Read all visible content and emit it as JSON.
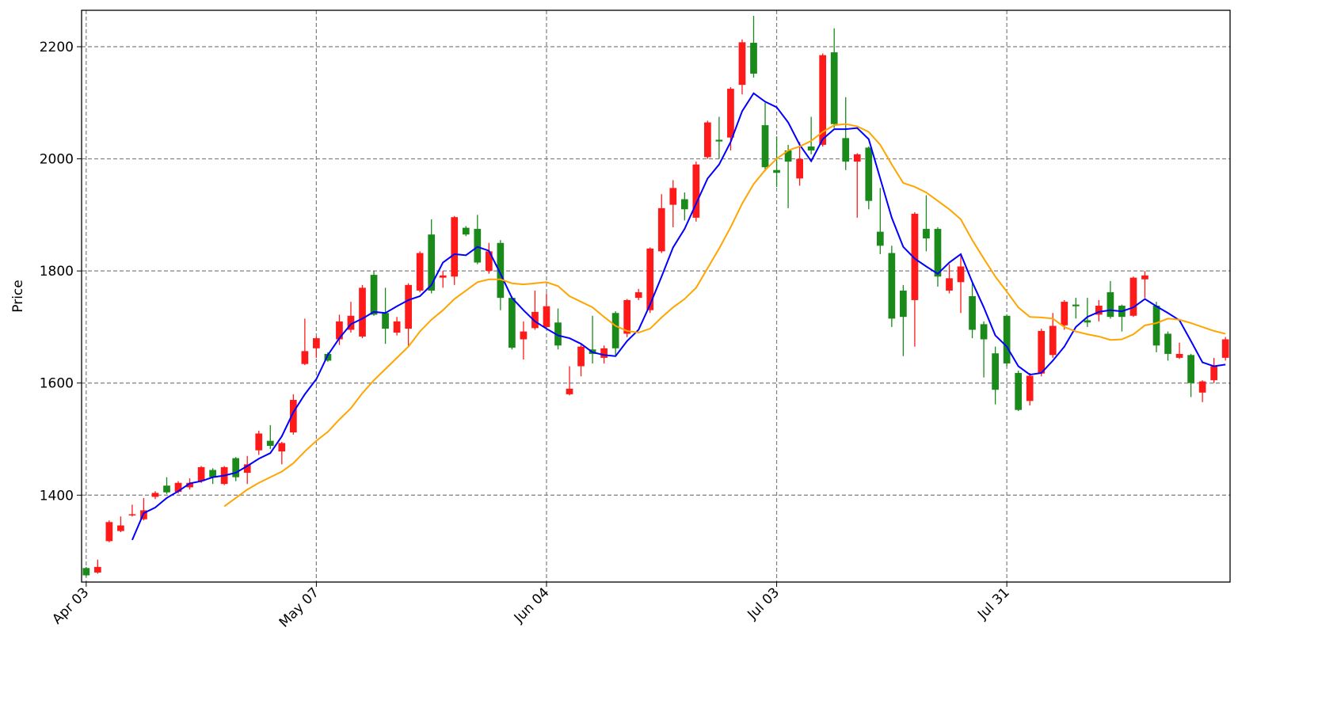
{
  "chart_data": {
    "type": "candlestick",
    "y_label": "Price",
    "categories": [
      "Apr 03",
      null,
      null,
      null,
      null,
      null,
      null,
      null,
      null,
      null,
      null,
      null,
      null,
      null,
      null,
      null,
      null,
      null,
      null,
      null,
      "May 07",
      null,
      null,
      null,
      null,
      null,
      null,
      null,
      null,
      null,
      null,
      null,
      null,
      null,
      null,
      null,
      null,
      null,
      null,
      null,
      "Jun 04",
      null,
      null,
      null,
      null,
      null,
      null,
      null,
      null,
      null,
      null,
      null,
      null,
      null,
      null,
      null,
      null,
      null,
      null,
      null,
      "Jul 03",
      null,
      null,
      null,
      null,
      null,
      null,
      null,
      null,
      null,
      null,
      null,
      null,
      null,
      null,
      null,
      null,
      null,
      null,
      null,
      "Jul 31",
      null,
      null,
      null,
      null,
      null,
      null,
      null,
      null,
      null,
      null,
      null,
      null,
      null,
      null,
      null,
      null,
      null,
      null,
      null
    ],
    "open": [
      1270,
      1262,
      1318,
      1336,
      1364,
      1357,
      1397,
      1417,
      1406,
      1414,
      1425,
      1445,
      1420,
      1466,
      1440,
      1480,
      1497,
      1478,
      1512,
      1634,
      1662,
      1652,
      1678,
      1695,
      1683,
      1793,
      1725,
      1690,
      1697,
      1765,
      1865,
      1788,
      1790,
      1877,
      1875,
      1800,
      1850,
      1752,
      1678,
      1698,
      1700,
      1708,
      1580,
      1630,
      1660,
      1645,
      1725,
      1688,
      1752,
      1730,
      1835,
      1918,
      1928,
      1895,
      2003,
      2034,
      2038,
      2132,
      2207,
      2060,
      1980,
      2015,
      1965,
      2022,
      2025,
      2190,
      2037,
      1995,
      2020,
      1870,
      1832,
      1765,
      1748,
      1875,
      1875,
      1765,
      1780,
      1755,
      1705,
      1653,
      1720,
      1618,
      1568,
      1617,
      1650,
      1703,
      1740,
      1712,
      1722,
      1762,
      1738,
      1720,
      1785,
      1738,
      1688,
      1645,
      1650,
      1583,
      1605,
      1645
    ],
    "high": [
      1272,
      1285,
      1355,
      1362,
      1383,
      1395,
      1407,
      1432,
      1425,
      1430,
      1452,
      1448,
      1452,
      1468,
      1470,
      1515,
      1525,
      1495,
      1580,
      1715,
      1683,
      1655,
      1722,
      1745,
      1775,
      1800,
      1770,
      1718,
      1778,
      1835,
      1892,
      1800,
      1898,
      1880,
      1900,
      1850,
      1855,
      1755,
      1710,
      1765,
      1760,
      1733,
      1630,
      1668,
      1720,
      1667,
      1728,
      1750,
      1768,
      1842,
      1937,
      1962,
      1940,
      1995,
      2068,
      2075,
      2128,
      2213,
      2255,
      2100,
      2040,
      2025,
      2030,
      2075,
      2188,
      2233,
      2110,
      2010,
      2022,
      1948,
      1845,
      1775,
      1905,
      1935,
      1878,
      1812,
      1830,
      1778,
      1710,
      1665,
      1722,
      1622,
      1618,
      1697,
      1725,
      1748,
      1752,
      1752,
      1748,
      1782,
      1740,
      1790,
      1800,
      1745,
      1692,
      1672,
      1652,
      1605,
      1645,
      1682
    ],
    "low": [
      1255,
      1260,
      1316,
      1334,
      1362,
      1355,
      1393,
      1402,
      1403,
      1410,
      1422,
      1420,
      1418,
      1425,
      1420,
      1472,
      1482,
      1455,
      1508,
      1632,
      1645,
      1638,
      1668,
      1690,
      1680,
      1720,
      1670,
      1685,
      1665,
      1762,
      1760,
      1770,
      1775,
      1862,
      1812,
      1795,
      1730,
      1660,
      1642,
      1695,
      1698,
      1660,
      1578,
      1612,
      1635,
      1635,
      1650,
      1682,
      1748,
      1725,
      1832,
      1878,
      1890,
      1888,
      2000,
      2000,
      2015,
      2115,
      2145,
      1978,
      1950,
      1912,
      1952,
      2008,
      2022,
      2055,
      1980,
      1895,
      1910,
      1830,
      1700,
      1648,
      1665,
      1835,
      1772,
      1760,
      1725,
      1680,
      1610,
      1562,
      1630,
      1550,
      1560,
      1612,
      1645,
      1695,
      1715,
      1700,
      1710,
      1715,
      1692,
      1718,
      1752,
      1655,
      1640,
      1643,
      1575,
      1566,
      1600,
      1640
    ],
    "close": [
      1257,
      1272,
      1352,
      1346,
      1366,
      1373,
      1404,
      1405,
      1422,
      1422,
      1450,
      1432,
      1450,
      1432,
      1455,
      1510,
      1488,
      1493,
      1570,
      1657,
      1680,
      1640,
      1710,
      1720,
      1770,
      1722,
      1697,
      1710,
      1775,
      1832,
      1765,
      1792,
      1896,
      1865,
      1815,
      1835,
      1752,
      1663,
      1692,
      1727,
      1737,
      1667,
      1590,
      1665,
      1652,
      1662,
      1662,
      1748,
      1762,
      1840,
      1912,
      1948,
      1910,
      1990,
      2065,
      2031,
      2125,
      2208,
      2152,
      1985,
      1975,
      1995,
      2000,
      2015,
      2185,
      2062,
      1995,
      2008,
      1925,
      1845,
      1715,
      1718,
      1902,
      1858,
      1790,
      1787,
      1808,
      1695,
      1678,
      1588,
      1635,
      1552,
      1613,
      1693,
      1702,
      1745,
      1737,
      1708,
      1738,
      1718,
      1718,
      1788,
      1792,
      1667,
      1652,
      1652,
      1600,
      1603,
      1630,
      1678
    ],
    "up_color": "#ff1a1a",
    "down_color": "#1a8a1a",
    "lines": [
      {
        "color": "#0000ff",
        "values": [
          null,
          null,
          null,
          null,
          1320,
          1368,
          1378,
          1395,
          1407,
          1421,
          1425,
          1432,
          1435,
          1440,
          1452,
          1465,
          1475,
          1505,
          1548,
          1580,
          1607,
          1650,
          1680,
          1705,
          1715,
          1727,
          1725,
          1737,
          1748,
          1755,
          1775,
          1815,
          1830,
          1828,
          1843,
          1836,
          1795,
          1752,
          1730,
          1710,
          1697,
          1685,
          1680,
          1670,
          1655,
          1650,
          1648,
          1675,
          1695,
          1740,
          1790,
          1842,
          1875,
          1920,
          1965,
          1990,
          2030,
          2085,
          2117,
          2102,
          2092,
          2065,
          2025,
          1996,
          2035,
          2053,
          2053,
          2055,
          2035,
          1965,
          1895,
          1843,
          1822,
          1808,
          1795,
          1815,
          1830,
          1780,
          1735,
          1685,
          1665,
          1630,
          1615,
          1618,
          1640,
          1665,
          1700,
          1718,
          1727,
          1730,
          1728,
          1735,
          1750,
          1737,
          1725,
          1712,
          1675,
          1637,
          1630,
          1633
        ]
      },
      {
        "color": "#ffa500",
        "values": [
          null,
          null,
          null,
          null,
          null,
          null,
          null,
          null,
          null,
          null,
          null,
          null,
          1380,
          1395,
          1410,
          1422,
          1432,
          1442,
          1457,
          1478,
          1497,
          1513,
          1535,
          1555,
          1582,
          1605,
          1625,
          1645,
          1665,
          1692,
          1713,
          1730,
          1750,
          1765,
          1780,
          1785,
          1785,
          1778,
          1776,
          1778,
          1780,
          1773,
          1755,
          1745,
          1735,
          1718,
          1702,
          1693,
          1690,
          1697,
          1717,
          1735,
          1750,
          1770,
          1805,
          1840,
          1878,
          1920,
          1955,
          1980,
          2000,
          2015,
          2022,
          2032,
          2048,
          2060,
          2062,
          2058,
          2048,
          2025,
          1990,
          1957,
          1950,
          1940,
          1925,
          1910,
          1892,
          1855,
          1822,
          1790,
          1763,
          1735,
          1718,
          1717,
          1715,
          1700,
          1692,
          1687,
          1683,
          1677,
          1678,
          1687,
          1703,
          1707,
          1715,
          1713,
          1707,
          1700,
          1693,
          1688
        ]
      }
    ],
    "xlim": [
      -0.4,
      99.4
    ],
    "ylim": [
      1245,
      2265
    ],
    "yticks": [
      1400,
      1600,
      1800,
      2000,
      2200
    ],
    "grid": true
  }
}
